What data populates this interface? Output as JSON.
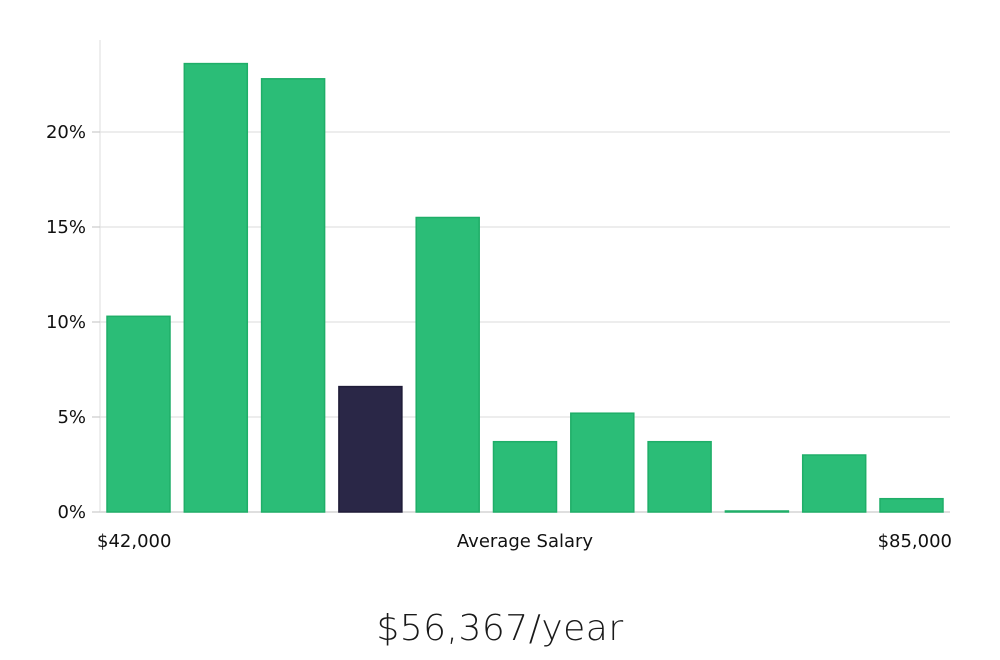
{
  "chart_data": {
    "type": "bar",
    "ylim": [
      0,
      25
    ],
    "yticks": [
      0,
      5,
      10,
      15,
      20
    ],
    "ytick_labels": [
      "0%",
      "5%",
      "10%",
      "15%",
      "20%"
    ],
    "values": [
      10.3,
      23.6,
      22.8,
      6.6,
      15.5,
      3.7,
      5.2,
      3.7,
      0.05,
      3.0,
      0.7
    ],
    "highlight_index": 3,
    "x_range_labels": {
      "min": "$42,000",
      "max": "$85,000"
    },
    "xlabel": "Average Salary",
    "grid": true,
    "colors": {
      "bar": "#2bbd77",
      "bar_edge": "#1fae68",
      "highlight": "#2a2747",
      "grid": "#e2e2e2",
      "axis": "#cccccc"
    }
  },
  "salary_text": "$56,367/year"
}
